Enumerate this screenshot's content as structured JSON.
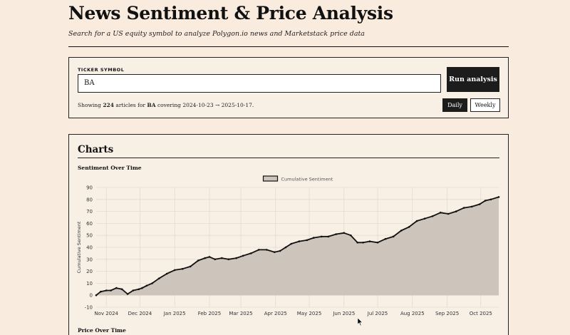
{
  "header": {
    "title": "News Sentiment & Price Analysis",
    "subtitle": "Search for a US equity symbol to analyze Polygon.io news and Marketstack price data"
  },
  "search": {
    "label": "TICKER SYMBOL",
    "value": "BA",
    "run_label": "Run analysis",
    "summary_prefix": "Showing",
    "article_count": "224",
    "summary_mid": "articles for",
    "ticker": "BA",
    "summary_covering": "covering 2024-10-23 → 2025-10-17.",
    "daily_label": "Daily",
    "weekly_label": "Weekly",
    "active_interval": "Daily"
  },
  "charts": {
    "title": "Charts",
    "sentiment_heading": "Sentiment Over Time",
    "price_heading": "Price Over Time"
  },
  "chart_data": {
    "type": "area",
    "legend": [
      "Cumulative Sentiment"
    ],
    "legend_placement": "top-center",
    "ylabel": "Cumulative Sentiment",
    "xlabel": "",
    "ylim": [
      -10,
      90
    ],
    "yticks": [
      -10,
      0,
      10,
      20,
      30,
      40,
      50,
      60,
      70,
      80,
      90
    ],
    "xtick_labels": [
      "Nov 2024",
      "Dec 2024",
      "Jan 2025",
      "Feb 2025",
      "Mar 2025",
      "Apr 2025",
      "May 2025",
      "Jun 2025",
      "Jul 2025",
      "Aug 2025",
      "Sep 2025",
      "Oct 2025"
    ],
    "xtick_dates": [
      "2024-11-01",
      "2024-12-01",
      "2025-01-01",
      "2025-02-01",
      "2025-03-01",
      "2025-04-01",
      "2025-05-01",
      "2025-06-01",
      "2025-07-01",
      "2025-08-01",
      "2025-09-01",
      "2025-10-01"
    ],
    "xlim": [
      "2024-10-23",
      "2025-10-17"
    ],
    "grid": true,
    "colors": {
      "line": "#111111",
      "fill": "#cdc5bb"
    },
    "series": [
      {
        "name": "Cumulative Sentiment",
        "x": [
          "2024-10-23",
          "2024-10-27",
          "2024-11-01",
          "2024-11-05",
          "2024-11-10",
          "2024-11-15",
          "2024-11-20",
          "2024-11-25",
          "2024-11-30",
          "2024-12-03",
          "2024-12-07",
          "2024-12-12",
          "2024-12-18",
          "2024-12-25",
          "2025-01-01",
          "2025-01-08",
          "2025-01-15",
          "2025-01-22",
          "2025-01-28",
          "2025-02-01",
          "2025-02-06",
          "2025-02-12",
          "2025-02-18",
          "2025-02-25",
          "2025-03-03",
          "2025-03-10",
          "2025-03-17",
          "2025-03-24",
          "2025-03-31",
          "2025-04-05",
          "2025-04-10",
          "2025-04-15",
          "2025-04-22",
          "2025-04-29",
          "2025-05-05",
          "2025-05-12",
          "2025-05-18",
          "2025-05-25",
          "2025-06-01",
          "2025-06-07",
          "2025-06-13",
          "2025-06-18",
          "2025-06-24",
          "2025-07-01",
          "2025-07-08",
          "2025-07-15",
          "2025-07-22",
          "2025-07-29",
          "2025-08-05",
          "2025-08-12",
          "2025-08-19",
          "2025-08-26",
          "2025-09-02",
          "2025-09-09",
          "2025-09-16",
          "2025-09-23",
          "2025-09-30",
          "2025-10-05",
          "2025-10-10",
          "2025-10-17"
        ],
        "values": [
          0,
          3,
          4,
          4,
          6,
          5,
          1,
          4,
          5,
          6,
          8,
          10,
          14,
          18,
          21,
          22,
          24,
          29,
          31,
          32,
          30,
          31,
          30,
          31,
          33,
          35,
          38,
          38,
          36,
          37,
          40,
          43,
          45,
          46,
          48,
          49,
          49,
          51,
          52,
          50,
          44,
          44,
          45,
          44,
          47,
          49,
          54,
          57,
          62,
          64,
          66,
          69,
          68,
          70,
          73,
          74,
          76,
          79,
          80,
          82
        ]
      }
    ]
  }
}
